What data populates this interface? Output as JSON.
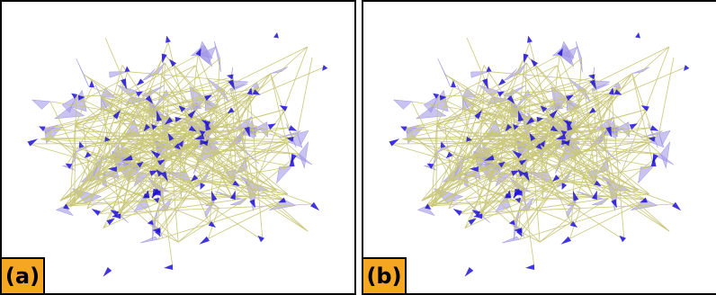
{
  "panels": [
    {
      "label": "(a)"
    },
    {
      "label": "(b)"
    }
  ],
  "colors": {
    "background": "#ffffff",
    "border": "#000000",
    "label_background": "#f5a623",
    "edge": "#c9c77a",
    "face": "#9c92e6",
    "node": "#1e10d8"
  }
}
